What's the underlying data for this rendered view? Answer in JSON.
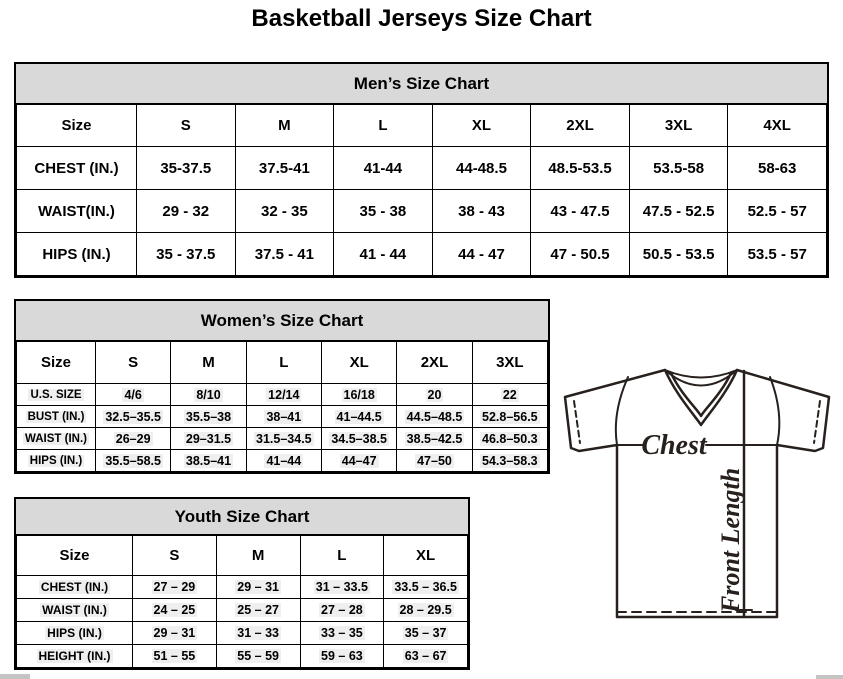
{
  "page_title": "Basketball Jerseys Size Chart",
  "mens_chart": {
    "title": "Men’s Size Chart",
    "columns": [
      "Size",
      "S",
      "M",
      "L",
      "XL",
      "2XL",
      "3XL",
      "4XL"
    ],
    "rows": [
      {
        "label": "CHEST (IN.)",
        "values": [
          "35-37.5",
          "37.5-41",
          "41-44",
          "44-48.5",
          "48.5-53.5",
          "53.5-58",
          "58-63"
        ]
      },
      {
        "label": "WAIST(IN.)",
        "values": [
          "29 - 32",
          "32 - 35",
          "35 - 38",
          "38 - 43",
          "43 - 47.5",
          "47.5 - 52.5",
          "52.5 - 57"
        ]
      },
      {
        "label": "HIPS (IN.)",
        "values": [
          "35 - 37.5",
          "37.5 - 41",
          "41 - 44",
          "44 - 47",
          "47 - 50.5",
          "50.5 - 53.5",
          "53.5 - 57"
        ]
      }
    ]
  },
  "womens_chart": {
    "title": "Women’s Size Chart",
    "columns": [
      "Size",
      "S",
      "M",
      "L",
      "XL",
      "2XL",
      "3XL"
    ],
    "rows": [
      {
        "label": "U.S. SIZE",
        "values": [
          "4/6",
          "8/10",
          "12/14",
          "16/18",
          "20",
          "22"
        ]
      },
      {
        "label": "BUST (IN.)",
        "values": [
          "32.5–35.5",
          "35.5–38",
          "38–41",
          "41–44.5",
          "44.5–48.5",
          "52.8–56.5"
        ]
      },
      {
        "label": "WAIST (IN.)",
        "values": [
          "26–29",
          "29–31.5",
          "31.5–34.5",
          "34.5–38.5",
          "38.5–42.5",
          "46.8–50.3"
        ]
      },
      {
        "label": "HIPS (IN.)",
        "values": [
          "35.5–58.5",
          "38.5–41",
          "41–44",
          "44–47",
          "47–50",
          "54.3–58.3"
        ]
      }
    ]
  },
  "youth_chart": {
    "title": "Youth Size Chart",
    "columns": [
      "Size",
      "S",
      "M",
      "L",
      "XL"
    ],
    "rows": [
      {
        "label": "CHEST (IN.)",
        "values": [
          "27 – 29",
          "29 – 31",
          "31 – 33.5",
          "33.5 – 36.5"
        ]
      },
      {
        "label": "WAIST (IN.)",
        "values": [
          "24 – 25",
          "25 – 27",
          "27 – 28",
          "28 – 29.5"
        ]
      },
      {
        "label": "HIPS (IN.)",
        "values": [
          "29 – 31",
          "31 – 33",
          "33 – 35",
          "35 – 37"
        ]
      },
      {
        "label": "HEIGHT (IN.)",
        "values": [
          "51 – 55",
          "55 – 59",
          "59 – 63",
          "63 – 67"
        ]
      }
    ]
  },
  "diagram": {
    "chest_label": "Chest",
    "front_length_label": "Front Length",
    "line_color": "#27201d"
  },
  "colors": {
    "header_bar": "#d9d9d9",
    "border": "#000000",
    "highlight": "#efefef"
  }
}
